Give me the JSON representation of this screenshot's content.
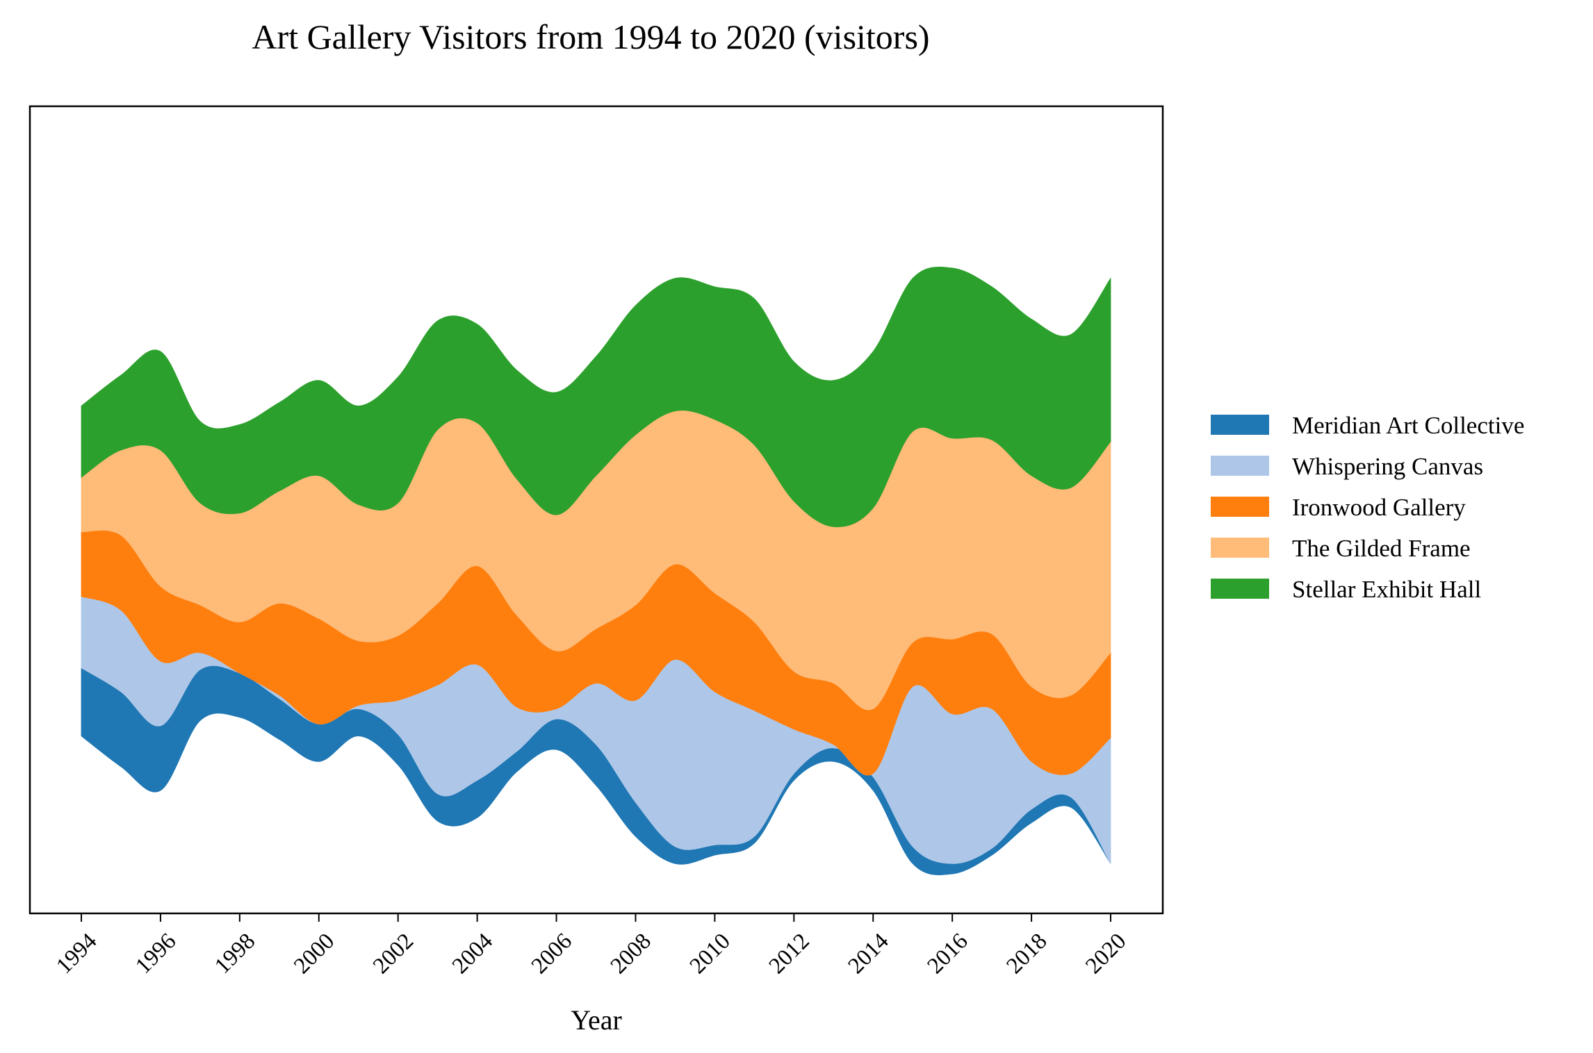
{
  "chart_data": {
    "type": "area",
    "subtype": "streamgraph",
    "title": "Art Gallery Visitors from 1994 to 2020 (visitors)",
    "xlabel": "Year",
    "ylabel": "",
    "x": [
      1994,
      1995,
      1996,
      1997,
      1998,
      1999,
      2000,
      2001,
      2002,
      2003,
      2004,
      2005,
      2006,
      2007,
      2008,
      2009,
      2010,
      2011,
      2012,
      2013,
      2014,
      2015,
      2016,
      2017,
      2018,
      2019,
      2020
    ],
    "x_ticks": [
      "1994",
      "1996",
      "1998",
      "2000",
      "2002",
      "2004",
      "2006",
      "2008",
      "2010",
      "2012",
      "2014",
      "2016",
      "2018",
      "2020"
    ],
    "y_axis_visible": false,
    "grid": false,
    "legend_position": "right",
    "series": [
      {
        "name": "Meridian Art Collective",
        "color": "#1f77b4",
        "values": [
          100,
          110,
          95,
          75,
          65,
          60,
          55,
          40,
          45,
          40,
          55,
          30,
          45,
          60,
          50,
          25,
          15,
          10,
          10,
          20,
          20,
          25,
          15,
          10,
          20,
          15,
          0
        ]
      },
      {
        "name": "Whispering Canvas",
        "color": "#aec7e8",
        "values": [
          105,
          120,
          95,
          25,
          0,
          5,
          0,
          5,
          50,
          160,
          170,
          65,
          15,
          90,
          150,
          275,
          225,
          185,
          65,
          5,
          5,
          235,
          220,
          205,
          70,
          35,
          185
        ]
      },
      {
        "name": "Ironwood Gallery",
        "color": "#ff7f0e",
        "values": [
          95,
          110,
          110,
          70,
          75,
          135,
          155,
          95,
          95,
          120,
          145,
          135,
          85,
          80,
          140,
          140,
          145,
          130,
          85,
          90,
          95,
          65,
          110,
          110,
          110,
          115,
          125
        ]
      },
      {
        "name": "The Gilded Frame",
        "color": "#ffbb78",
        "values": [
          80,
          125,
          200,
          150,
          160,
          165,
          210,
          200,
          195,
          255,
          210,
          200,
          200,
          225,
          250,
          225,
          255,
          260,
          250,
          230,
          295,
          310,
          295,
          285,
          310,
          305,
          310
        ]
      },
      {
        "name": "Stellar Exhibit Hall",
        "color": "#2ca02c",
        "values": [
          105,
          110,
          145,
          120,
          130,
          130,
          140,
          145,
          185,
          160,
          145,
          160,
          180,
          175,
          190,
          195,
          195,
          215,
          205,
          215,
          230,
          225,
          250,
          225,
          230,
          225,
          240
        ]
      }
    ]
  }
}
